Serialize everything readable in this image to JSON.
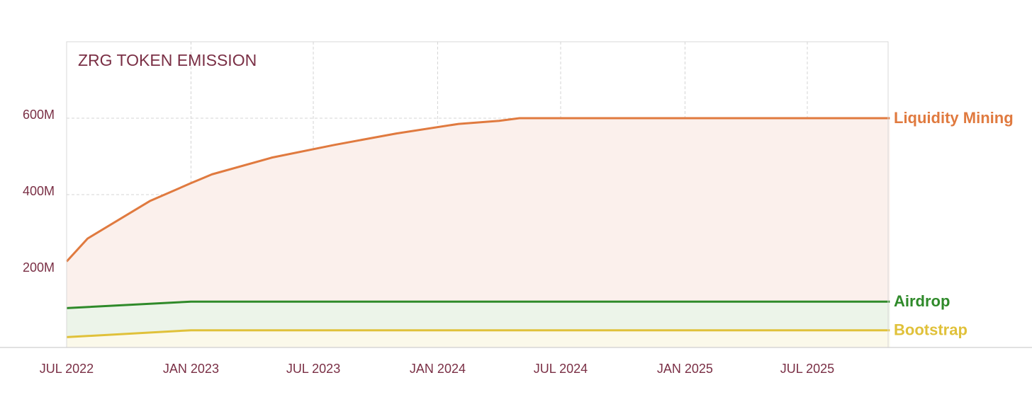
{
  "chart_data": {
    "type": "area",
    "title": "ZRG TOKEN EMISSION",
    "xlabel": "",
    "ylabel": "",
    "x_tick_labels": [
      "JUL 2022",
      "JAN 2023",
      "JUL 2023",
      "JAN 2024",
      "JUL 2024",
      "JAN 2025",
      "JUL 2025"
    ],
    "y_tick_labels": [
      "200M",
      "400M",
      "600M"
    ],
    "ylim": [
      0,
      800
    ],
    "xlim": [
      "2022-07-01",
      "2025-10-31"
    ],
    "grid": true,
    "legend": "inline-right",
    "series": [
      {
        "name": "Liquidity Mining",
        "color": "#e07a3f",
        "fill": "#fbf0ec",
        "points": [
          {
            "x": "2022-07-01",
            "y": 225
          },
          {
            "x": "2022-08-01",
            "y": 285
          },
          {
            "x": "2022-11-01",
            "y": 383
          },
          {
            "x": "2023-01-01",
            "y": 430
          },
          {
            "x": "2023-02-01",
            "y": 453
          },
          {
            "x": "2023-05-01",
            "y": 497
          },
          {
            "x": "2023-08-01",
            "y": 530
          },
          {
            "x": "2023-11-01",
            "y": 560
          },
          {
            "x": "2024-02-01",
            "y": 585
          },
          {
            "x": "2024-04-01",
            "y": 593
          },
          {
            "x": "2024-05-01",
            "y": 600
          },
          {
            "x": "2025-10-31",
            "y": 600
          }
        ]
      },
      {
        "name": "Airdrop",
        "color": "#2f8a2a",
        "fill": "#ecf4e9",
        "points": [
          {
            "x": "2022-07-01",
            "y": 103
          },
          {
            "x": "2023-01-01",
            "y": 120
          },
          {
            "x": "2025-10-31",
            "y": 120
          }
        ]
      },
      {
        "name": "Bootstrap",
        "color": "#e0c13a",
        "fill": "#fbf9ea",
        "points": [
          {
            "x": "2022-07-01",
            "y": 27
          },
          {
            "x": "2023-01-01",
            "y": 45
          },
          {
            "x": "2025-10-31",
            "y": 45
          }
        ]
      }
    ]
  },
  "colors": {
    "text": "#7a2f45",
    "grid": "#d4d4d4",
    "frame": "#d8d8d8",
    "baseline": "#cfcfcf"
  }
}
